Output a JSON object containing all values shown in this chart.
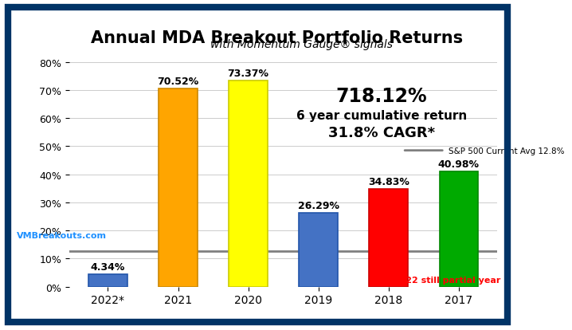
{
  "categories": [
    "2022*",
    "2021",
    "2020",
    "2019",
    "2018",
    "2017"
  ],
  "values": [
    4.34,
    70.52,
    73.37,
    26.29,
    34.83,
    40.98
  ],
  "bar_colors": [
    "#4472C4",
    "#FFA500",
    "#FFFF00",
    "#4472C4",
    "#FF0000",
    "#00AA00"
  ],
  "bar_edge_colors": [
    "#2255AA",
    "#CC8800",
    "#CCCC00",
    "#2255AA",
    "#CC0000",
    "#008800"
  ],
  "title": "Annual MDA Breakout Portfolio Returns",
  "subtitle": "with Momentum Gauge® signals",
  "sp500_line": 12.8,
  "sp500_label": "S&P 500 Current Avg 12.8%",
  "cumulative_text_line1": "718.12%",
  "cumulative_text_line2": "6 year cumulative return",
  "cumulative_text_line3": "31.8% CAGR*",
  "partial_year_note": "*2022 still partial year",
  "website": "VMBreakouts.com",
  "ylim": [
    0,
    80
  ],
  "yticks": [
    0,
    10,
    20,
    30,
    40,
    50,
    60,
    70,
    80
  ],
  "background_color": "#FFFFFF",
  "border_color": "#003366",
  "title_fontsize": 15,
  "subtitle_fontsize": 10,
  "bar_label_fontsize": 9,
  "annotation_fontsize_large": 14,
  "annotation_fontsize_small": 10,
  "sp500_line_color": "#808080",
  "partial_note_color": "#FF0000",
  "website_color": "#1E90FF",
  "cumulative_bold_color": "#000000"
}
